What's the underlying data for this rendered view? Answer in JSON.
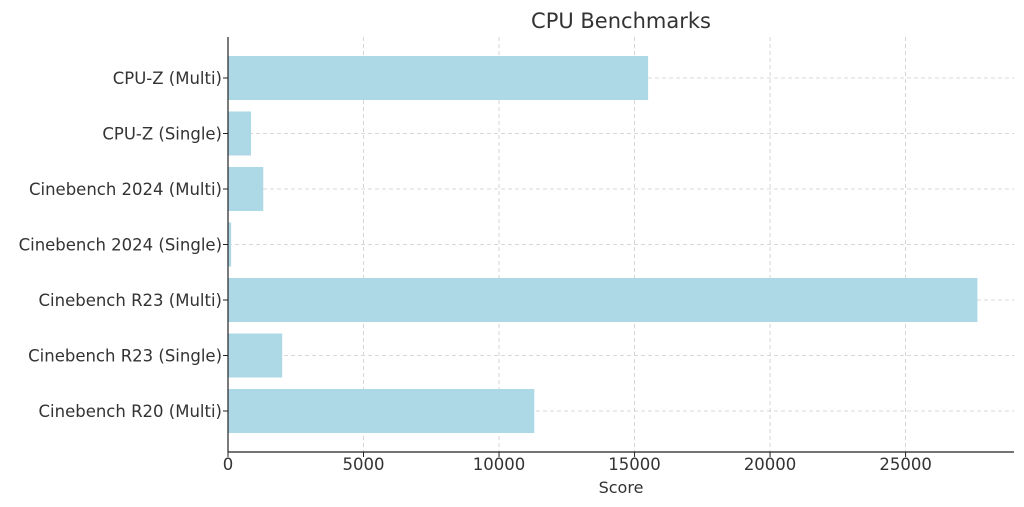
{
  "chart_data": {
    "type": "bar",
    "orientation": "horizontal",
    "title": "CPU Benchmarks",
    "xlabel": "Score",
    "ylabel": "",
    "categories": [
      "CPU-Z (Multi)",
      "CPU-Z (Single)",
      "Cinebench 2024 (Multi)",
      "Cinebench 2024 (Single)",
      "Cinebench R23 (Multi)",
      "Cinebench R23 (Single)",
      "Cinebench R20 (Multi)"
    ],
    "values": [
      15500,
      850,
      1300,
      115,
      27650,
      2000,
      11300
    ],
    "xlim": [
      0,
      29000
    ],
    "xticks": [
      0,
      5000,
      10000,
      15000,
      20000,
      25000
    ],
    "grid": true,
    "bar_color": "#add8e6"
  }
}
